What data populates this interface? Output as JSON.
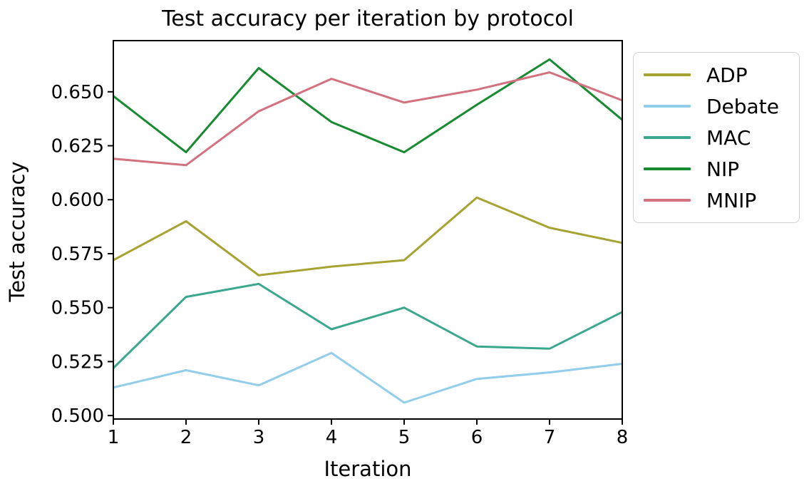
{
  "chart": {
    "title": "Test accuracy per iteration by protocol",
    "xlabel": "Iteration",
    "ylabel": "Test accuracy"
  },
  "chart_data": {
    "type": "line",
    "title": "Test accuracy per iteration by protocol",
    "xlabel": "Iteration",
    "ylabel": "Test accuracy",
    "x": [
      1,
      2,
      3,
      4,
      5,
      6,
      7,
      8
    ],
    "series": [
      {
        "name": "ADP",
        "color": "#a6a332",
        "values": [
          0.572,
          0.59,
          0.565,
          0.569,
          0.572,
          0.601,
          0.587,
          0.58
        ]
      },
      {
        "name": "Debate",
        "color": "#92cdec",
        "values": [
          0.513,
          0.521,
          0.514,
          0.529,
          0.506,
          0.517,
          0.52,
          0.524
        ]
      },
      {
        "name": "MAC",
        "color": "#3ca78f",
        "values": [
          0.522,
          0.555,
          0.561,
          0.54,
          0.55,
          0.532,
          0.531,
          0.548
        ]
      },
      {
        "name": "NIP",
        "color": "#178a32",
        "values": [
          0.648,
          0.622,
          0.661,
          0.636,
          0.622,
          0.644,
          0.665,
          0.637
        ]
      },
      {
        "name": "MNIP",
        "color": "#d4717f",
        "values": [
          0.619,
          0.616,
          0.641,
          0.656,
          0.645,
          0.651,
          0.659,
          0.646
        ]
      }
    ],
    "xlim": [
      1,
      8
    ],
    "ylim": [
      0.4984,
      0.6737
    ],
    "xticks": {
      "values": [
        1,
        2,
        3,
        4,
        5,
        6,
        7,
        8
      ],
      "labels": [
        "1",
        "2",
        "3",
        "4",
        "5",
        "6",
        "7",
        "8"
      ]
    },
    "yticks": {
      "values": [
        0.5,
        0.525,
        0.55,
        0.575,
        0.6,
        0.625,
        0.65
      ],
      "labels": [
        "0.500",
        "0.525",
        "0.550",
        "0.575",
        "0.600",
        "0.625",
        "0.650"
      ]
    },
    "grid": false,
    "legend_position": "outside upper right",
    "axis_color": "#000000",
    "background_color": "#ffffff"
  }
}
